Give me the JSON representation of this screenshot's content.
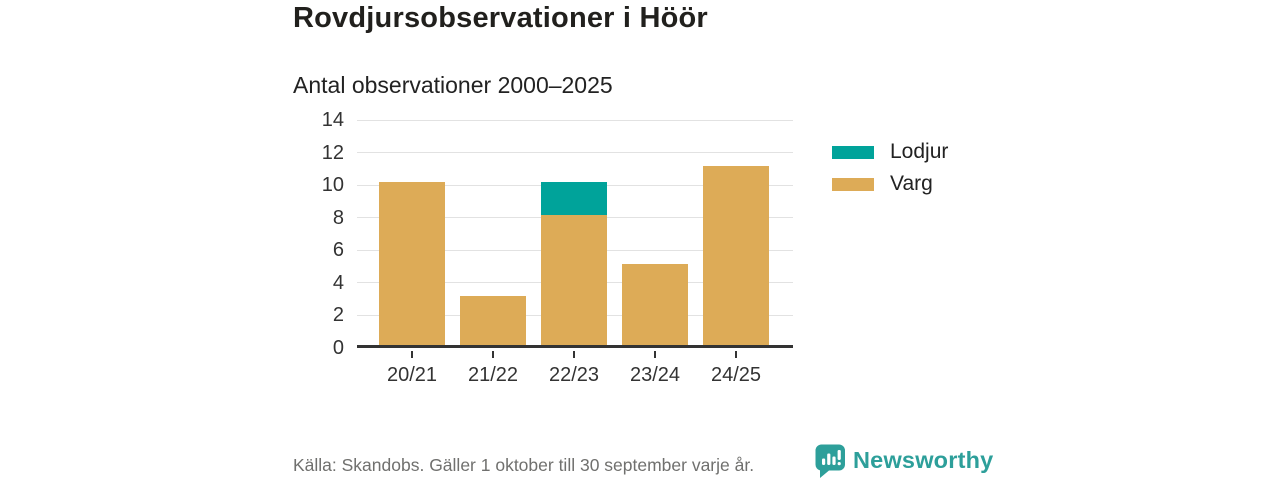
{
  "chart_data": {
    "type": "bar",
    "stacked": true,
    "title": "Rovdjursobservationer i Höör",
    "subtitle": "Antal observationer 2000–2025",
    "categories": [
      "20/21",
      "21/22",
      "22/23",
      "23/24",
      "24/25"
    ],
    "series": [
      {
        "name": "Varg",
        "color": "#ddab57",
        "values": [
          10,
          3,
          8,
          5,
          11
        ]
      },
      {
        "name": "Lodjur",
        "color": "#00a39a",
        "values": [
          0,
          0,
          2,
          0,
          0
        ]
      }
    ],
    "totals": [
      10,
      3,
      10,
      5,
      11
    ],
    "legend_order": [
      "Lodjur",
      "Varg"
    ],
    "legend_position": "right",
    "yticks": [
      0,
      2,
      4,
      6,
      8,
      10,
      12,
      14
    ],
    "ylim": [
      0,
      14
    ],
    "xlabel": "",
    "ylabel": "",
    "grid": true
  },
  "footer": {
    "source": "Källa: Skandobs. Gäller 1 oktober till 30 september varje år.",
    "brand": "Newsworthy"
  },
  "colors": {
    "lodjur": "#00a39a",
    "varg": "#ddab57",
    "brand_teal": "#2d9f9a",
    "axis": "#333333",
    "gridline": "#e2e2e2",
    "title_text": "#21201d",
    "muted_text": "#70706e"
  }
}
